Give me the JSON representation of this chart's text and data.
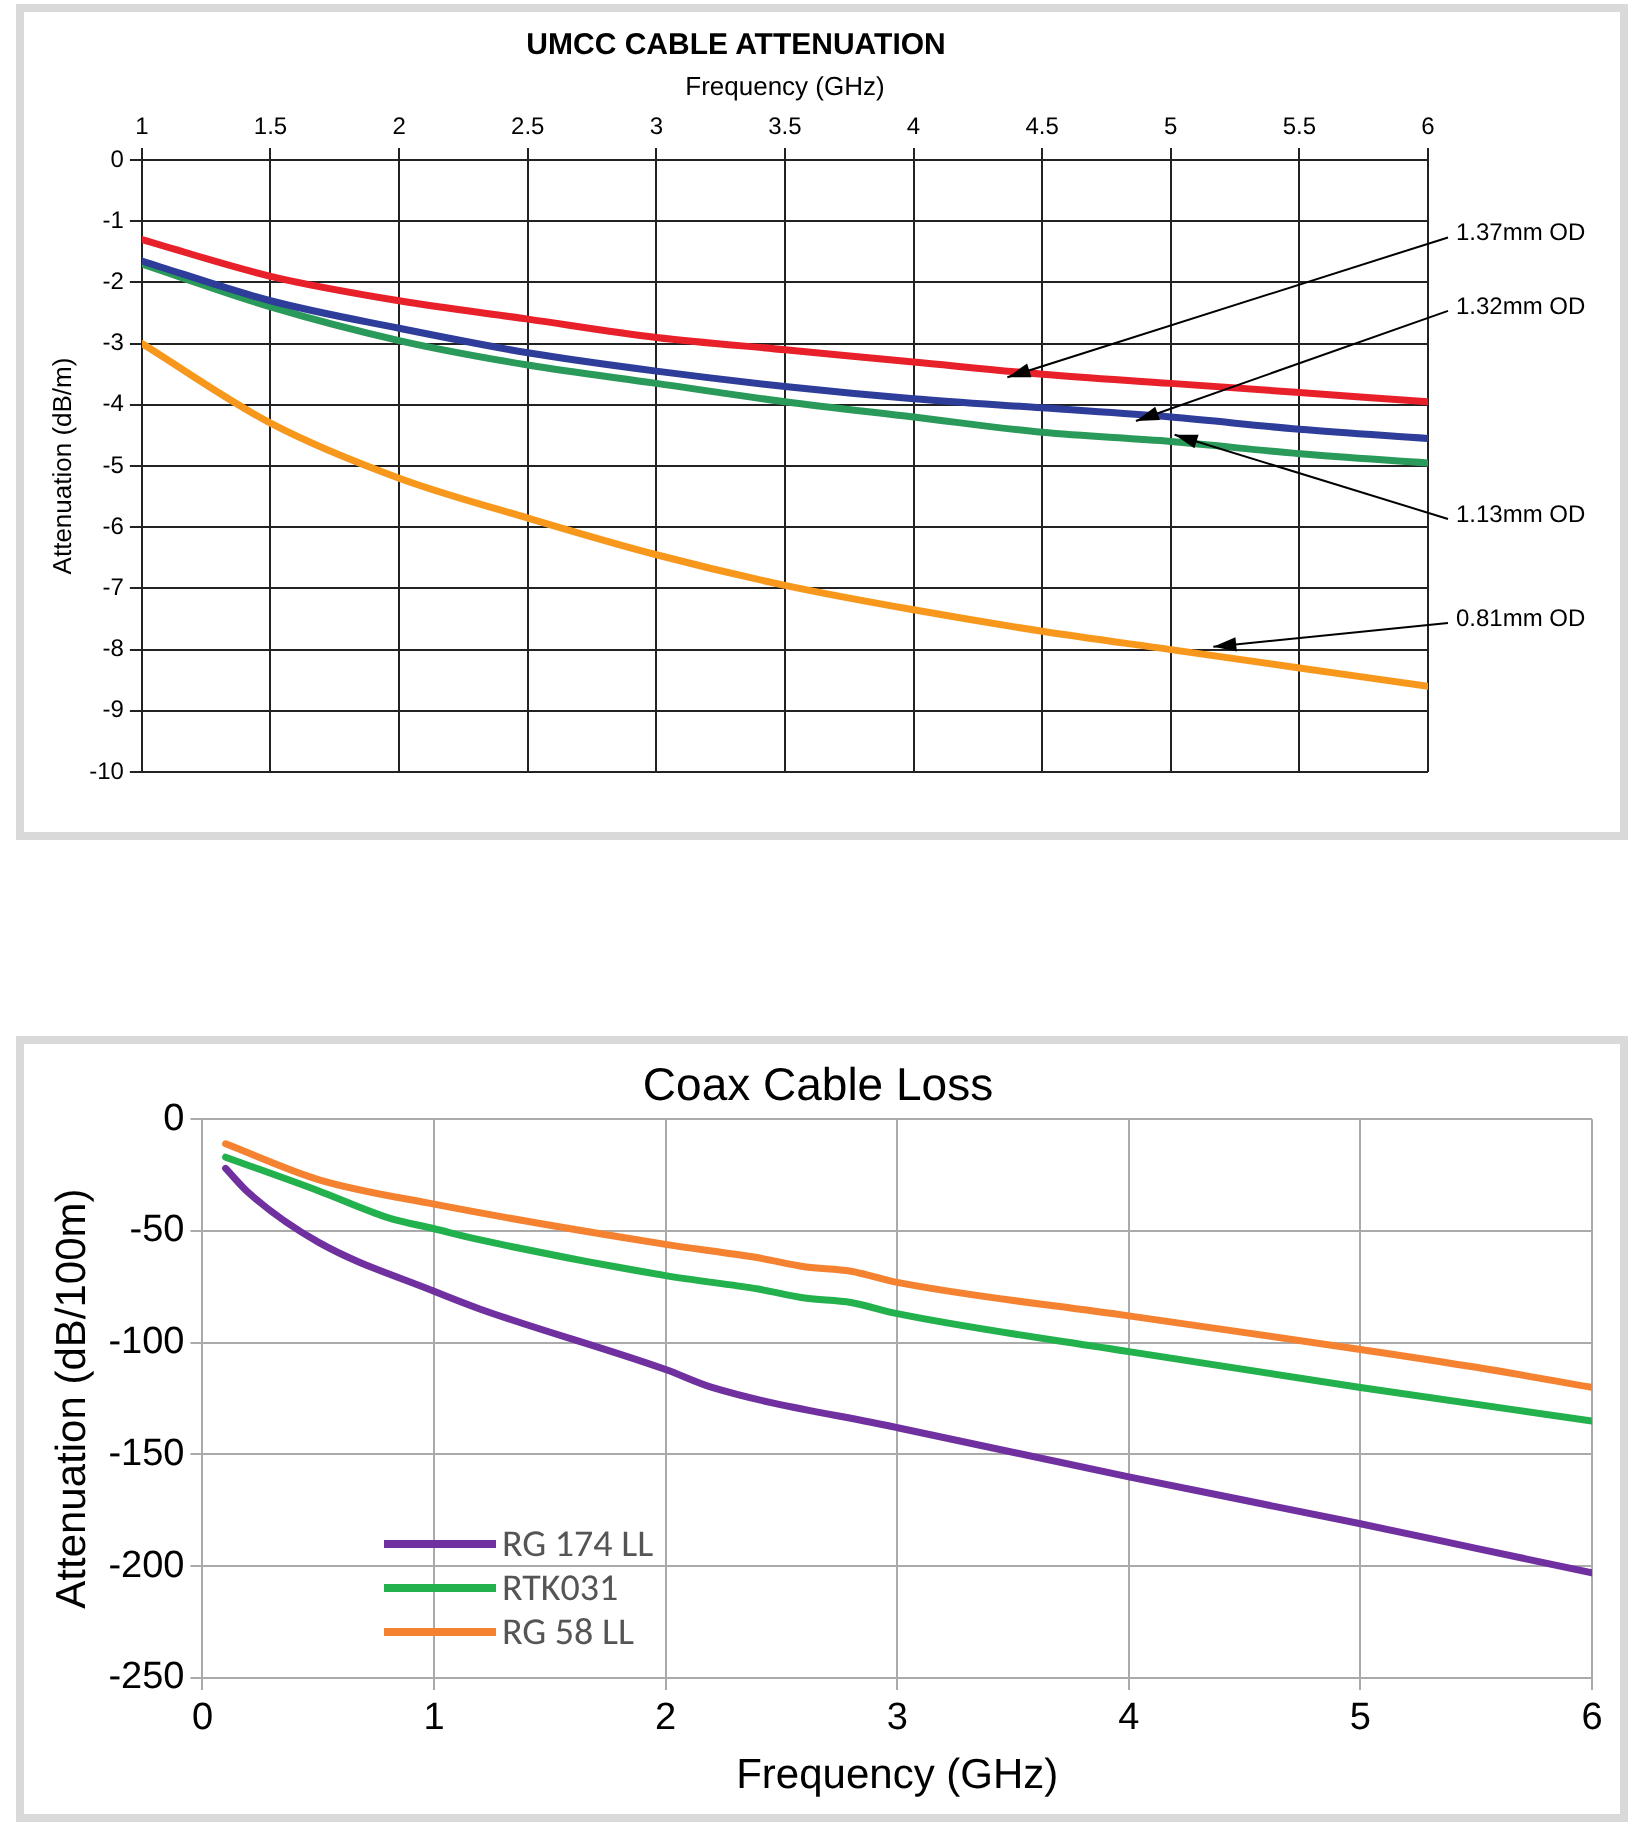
{
  "chart_data": [
    {
      "type": "line",
      "title": "UMCC CABLE ATTENUATION",
      "xlabel": "Frequency (GHz)",
      "ylabel": "Attenuation (dB/m)",
      "xlim": [
        1,
        6
      ],
      "xticks": [
        1,
        1.5,
        2,
        2.5,
        3,
        3.5,
        4,
        4.5,
        5,
        5.5,
        6
      ],
      "ylim": [
        -10,
        0
      ],
      "yticks": [
        0,
        -1,
        -2,
        -3,
        -4,
        -5,
        -6,
        -7,
        -8,
        -9,
        -10
      ],
      "grid": true,
      "legend": false,
      "marker": "none",
      "line_style": "solid",
      "x": [
        1,
        1.5,
        2,
        2.5,
        3,
        3.5,
        4,
        4.5,
        5,
        5.5,
        6
      ],
      "series": [
        {
          "name": "1.37mm OD",
          "color": "#e8202a",
          "values": [
            -1.3,
            -1.9,
            -2.3,
            -2.6,
            -2.9,
            -3.1,
            -3.3,
            -3.5,
            -3.65,
            -3.8,
            -3.95
          ]
        },
        {
          "name": "1.32mm OD",
          "color": "#2e3d9a",
          "values": [
            -1.65,
            -2.3,
            -2.75,
            -3.15,
            -3.45,
            -3.7,
            -3.9,
            -4.05,
            -4.2,
            -4.4,
            -4.55
          ]
        },
        {
          "name": "1.13mm OD",
          "color": "#2a9a5a",
          "values": [
            -1.7,
            -2.4,
            -2.95,
            -3.35,
            -3.65,
            -3.95,
            -4.2,
            -4.45,
            -4.6,
            -4.8,
            -4.95
          ]
        },
        {
          "name": "0.81mm OD",
          "color": "#f7981d",
          "values": [
            -3.0,
            -4.3,
            -5.2,
            -5.85,
            -6.45,
            -6.95,
            -7.35,
            -7.7,
            -8.0,
            -8.3,
            -8.6
          ]
        }
      ]
    },
    {
      "type": "line",
      "title": "Coax Cable Loss",
      "xlabel": "Frequency (GHz)",
      "ylabel": "Attenuation (dB/100m)",
      "xlim": [
        0,
        6
      ],
      "xticks": [
        0,
        1,
        2,
        3,
        4,
        5,
        6
      ],
      "ylim": [
        -250,
        0
      ],
      "yticks": [
        0,
        -50,
        -100,
        -150,
        -200,
        -250
      ],
      "grid": true,
      "legend": "bottom left",
      "marker": "none",
      "line_style": "solid",
      "series": [
        {
          "name": "RG 174 LL",
          "color": "#7030a0",
          "x": [
            0.1,
            0.2,
            0.5,
            1,
            1.2,
            2,
            2.2,
            3,
            4,
            5,
            5.5,
            6
          ],
          "values": [
            -22,
            -33,
            -55,
            -77,
            -85,
            -112,
            -120,
            -138,
            -160,
            -181,
            -192,
            -203
          ]
        },
        {
          "name": "RTK031",
          "color": "#22b14c",
          "x": [
            0.1,
            0.5,
            0.8,
            1,
            1.2,
            2,
            2.4,
            2.6,
            2.8,
            3,
            4,
            5,
            6
          ],
          "values": [
            -17,
            -32,
            -44,
            -49,
            -54,
            -70,
            -76,
            -80,
            -82,
            -87,
            -104,
            -120,
            -135
          ]
        },
        {
          "name": "RG 58 LL",
          "color": "#f58231",
          "x": [
            0.1,
            0.5,
            1,
            2,
            2.4,
            2.6,
            2.8,
            3,
            4,
            5,
            5.5,
            6
          ],
          "values": [
            -11,
            -27,
            -38,
            -56,
            -62,
            -66,
            -68,
            -73,
            -88,
            -103,
            -111,
            -120
          ]
        }
      ]
    }
  ]
}
